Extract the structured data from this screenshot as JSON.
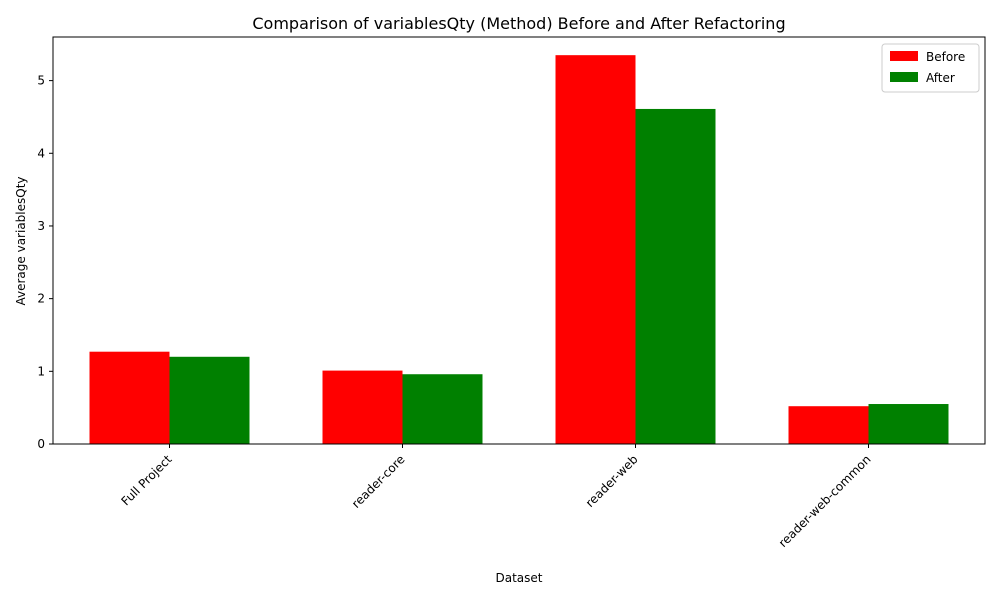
{
  "chart_data": {
    "type": "bar",
    "title": "Comparison of variablesQty (Method) Before and After Refactoring",
    "xlabel": "Dataset",
    "ylabel": "Average variablesQty",
    "categories": [
      "Full Project",
      "reader-core",
      "reader-web",
      "reader-web-common"
    ],
    "series": [
      {
        "name": "Before",
        "color": "#ff0000",
        "values": [
          1.27,
          1.01,
          5.35,
          0.52
        ]
      },
      {
        "name": "After",
        "color": "#008000",
        "values": [
          1.2,
          0.96,
          4.61,
          0.55
        ]
      }
    ],
    "ylim": [
      0,
      5.6
    ],
    "yticks": [
      0,
      1,
      2,
      3,
      4,
      5
    ],
    "legend_position": "top-right",
    "grid": false
  }
}
